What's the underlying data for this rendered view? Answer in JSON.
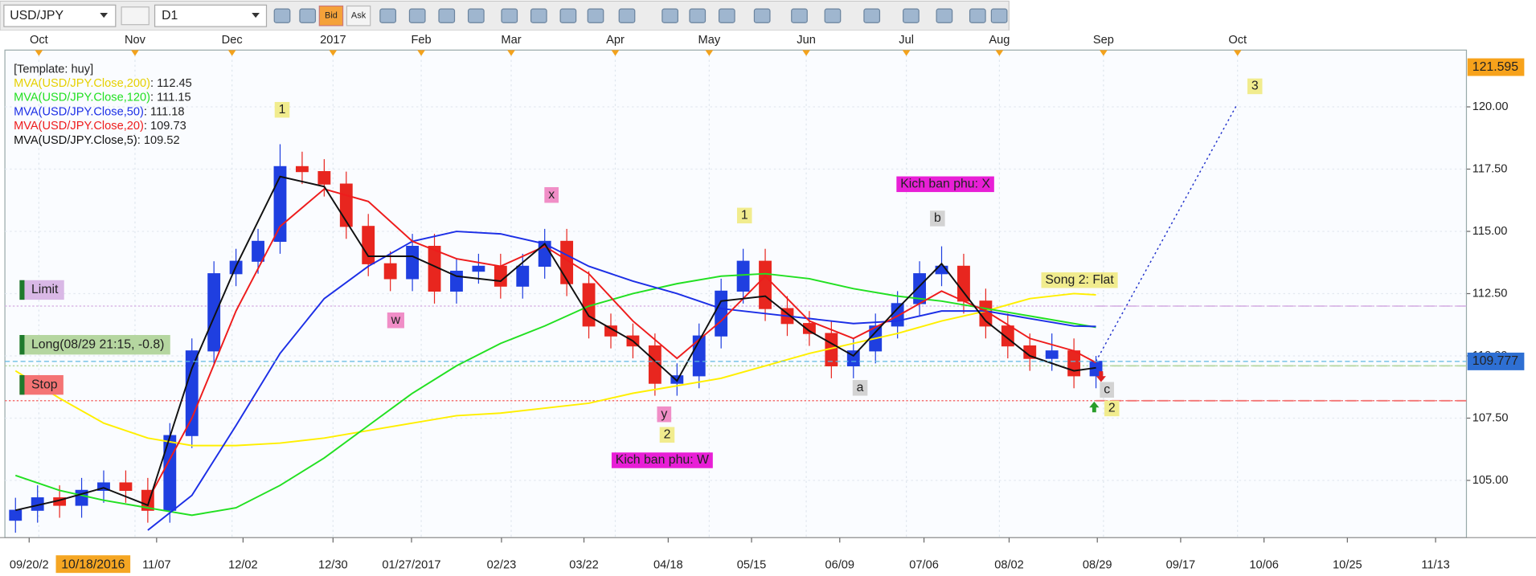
{
  "toolbar": {
    "symbol": "USD/JPY",
    "timeframe": "D1",
    "bid": "Bid",
    "ask": "Ask"
  },
  "chart_data": {
    "type": "candlestick",
    "template": "[Template: huy]",
    "legend_separator": ": ",
    "x": [
      -12,
      -7,
      -2,
      3,
      8,
      13,
      18,
      23,
      28,
      33,
      38,
      43,
      48,
      53,
      58,
      63,
      68,
      73,
      78,
      83,
      88,
      93,
      98,
      103,
      108,
      113,
      118,
      123,
      128,
      133,
      138,
      143,
      148,
      153,
      158,
      163,
      168,
      173,
      178,
      183,
      188,
      193,
      198,
      203,
      208,
      213,
      218,
      223,
      228,
      233
    ],
    "open": [
      103.4,
      103.8,
      104.3,
      104.0,
      104.6,
      104.9,
      104.6,
      103.8,
      106.8,
      110.2,
      113.3,
      113.8,
      114.6,
      117.6,
      117.4,
      116.9,
      115.2,
      113.7,
      113.1,
      114.4,
      112.6,
      113.4,
      113.6,
      112.8,
      113.6,
      114.6,
      112.9,
      111.2,
      110.8,
      110.4,
      108.9,
      109.2,
      110.8,
      112.6,
      113.8,
      111.9,
      111.3,
      110.9,
      109.6,
      110.2,
      111.2,
      112.1,
      113.3,
      113.6,
      112.2,
      111.2,
      110.4,
      109.9,
      110.2,
      109.2
    ],
    "high": [
      104.3,
      104.8,
      104.8,
      105.1,
      105.4,
      105.4,
      105.1,
      107.3,
      110.7,
      113.8,
      114.3,
      115.1,
      118.5,
      118.2,
      117.9,
      117.4,
      115.7,
      114.2,
      114.9,
      114.9,
      113.9,
      114.1,
      114.1,
      114.1,
      115.1,
      115.1,
      113.4,
      111.7,
      111.3,
      110.9,
      109.7,
      111.3,
      113.1,
      114.3,
      114.3,
      112.4,
      111.8,
      111.4,
      110.7,
      111.7,
      112.6,
      113.8,
      114.4,
      114.1,
      112.7,
      111.7,
      110.9,
      110.9,
      110.7,
      110.0
    ],
    "low": [
      102.9,
      103.3,
      103.5,
      103.5,
      104.1,
      104.1,
      103.3,
      103.3,
      106.3,
      109.7,
      112.8,
      113.3,
      114.1,
      116.9,
      116.4,
      114.7,
      113.2,
      112.6,
      112.6,
      112.1,
      112.1,
      112.9,
      112.3,
      112.3,
      113.1,
      112.4,
      110.7,
      110.3,
      109.9,
      108.4,
      108.4,
      108.7,
      110.3,
      112.1,
      111.4,
      110.8,
      110.4,
      109.1,
      109.1,
      109.7,
      110.7,
      111.6,
      112.8,
      111.7,
      110.7,
      109.9,
      109.4,
      109.4,
      108.7,
      108.7
    ],
    "close": [
      103.8,
      104.3,
      104.0,
      104.6,
      104.9,
      104.6,
      103.8,
      106.8,
      110.2,
      113.3,
      113.8,
      114.6,
      117.6,
      117.4,
      116.9,
      115.2,
      113.7,
      113.1,
      114.4,
      112.6,
      113.4,
      113.6,
      112.8,
      113.6,
      114.6,
      112.9,
      111.2,
      110.8,
      110.4,
      108.9,
      109.2,
      110.8,
      112.6,
      113.8,
      111.9,
      111.3,
      110.9,
      109.6,
      110.2,
      111.2,
      112.1,
      113.3,
      113.6,
      112.2,
      111.2,
      110.4,
      109.9,
      110.2,
      109.2,
      109.78
    ],
    "up_color": "#1f3fe0",
    "down_color": "#e8261f",
    "series": [
      {
        "name": "MVA(USD/JPY.Close,200)",
        "color": "#ffef00",
        "x": [
          -12,
          -2,
          8,
          18,
          28,
          38,
          48,
          58,
          68,
          78,
          88,
          98,
          108,
          118,
          128,
          138,
          148,
          158,
          168,
          178,
          188,
          198,
          208,
          218,
          228,
          233
        ],
        "values": [
          109.4,
          108.3,
          107.3,
          106.7,
          106.4,
          106.4,
          106.5,
          106.7,
          107.0,
          107.3,
          107.6,
          107.7,
          107.9,
          108.1,
          108.5,
          108.8,
          109.1,
          109.6,
          110.1,
          110.5,
          110.9,
          111.4,
          111.8,
          112.3,
          112.5,
          112.45
        ]
      },
      {
        "name": "MVA(USD/JPY.Close,120)",
        "color": "#22e022",
        "x": [
          -12,
          -2,
          8,
          18,
          28,
          38,
          48,
          58,
          68,
          78,
          88,
          98,
          108,
          118,
          128,
          138,
          148,
          158,
          168,
          178,
          188,
          198,
          208,
          218,
          228,
          233
        ],
        "values": [
          105.2,
          104.6,
          104.2,
          103.9,
          103.6,
          103.9,
          104.8,
          105.9,
          107.2,
          108.5,
          109.6,
          110.5,
          111.2,
          112.0,
          112.5,
          112.9,
          113.2,
          113.3,
          113.1,
          112.7,
          112.4,
          112.2,
          111.9,
          111.6,
          111.3,
          111.15
        ]
      },
      {
        "name": "MVA(USD/JPY.Close,50)",
        "color": "#1c2fe6",
        "x": [
          -12,
          -2,
          8,
          18,
          28,
          38,
          48,
          58,
          68,
          78,
          88,
          98,
          108,
          118,
          128,
          138,
          148,
          158,
          168,
          178,
          188,
          198,
          208,
          218,
          228,
          233
        ],
        "values": [
          null,
          null,
          null,
          103.0,
          104.4,
          107.2,
          110.1,
          112.3,
          113.6,
          114.6,
          115.0,
          114.9,
          114.5,
          113.6,
          113.0,
          112.5,
          111.9,
          111.7,
          111.5,
          111.3,
          111.4,
          111.8,
          111.8,
          111.5,
          111.2,
          111.18
        ]
      },
      {
        "name": "MVA(USD/JPY.Close,20)",
        "color": "#ee1c1c",
        "x": [
          -12,
          -2,
          8,
          18,
          28,
          38,
          48,
          58,
          68,
          78,
          88,
          98,
          108,
          118,
          128,
          138,
          148,
          158,
          168,
          178,
          188,
          198,
          208,
          218,
          228,
          233
        ],
        "values": [
          null,
          null,
          null,
          104.2,
          107.5,
          111.8,
          115.2,
          116.7,
          116.2,
          114.6,
          113.9,
          113.6,
          114.4,
          113.3,
          111.4,
          109.9,
          111.4,
          113.2,
          111.4,
          110.7,
          111.6,
          112.6,
          111.8,
          110.7,
          110.2,
          109.73
        ]
      },
      {
        "name": "MVA(USD/JPY.Close,5)",
        "color": "#111111",
        "x": [
          -12,
          -2,
          8,
          18,
          28,
          38,
          48,
          58,
          68,
          78,
          88,
          98,
          108,
          118,
          128,
          138,
          148,
          158,
          168,
          178,
          188,
          198,
          208,
          218,
          228,
          233
        ],
        "values": [
          103.8,
          104.2,
          104.7,
          104.0,
          109.5,
          113.6,
          117.2,
          116.8,
          114.0,
          114.0,
          113.2,
          113.0,
          114.5,
          111.6,
          110.6,
          109.0,
          112.2,
          112.4,
          111.0,
          110.0,
          111.9,
          113.7,
          111.4,
          110.0,
          109.4,
          109.52
        ]
      }
    ],
    "xlim": [
      -14.4,
      317
    ],
    "ylim": [
      102.7,
      122.28
    ],
    "yticks": [
      {
        "value": 105,
        "label": "105.00"
      },
      {
        "value": 107.5,
        "label": "107.50"
      },
      {
        "value": 110,
        "label": "110.00"
      },
      {
        "value": 112.5,
        "label": "112.50"
      },
      {
        "value": 115,
        "label": "115.00"
      },
      {
        "value": 117.5,
        "label": "117.50"
      },
      {
        "value": 120,
        "label": "120.00"
      }
    ],
    "xticks": [
      {
        "value": -8.9,
        "label": "09/20/2"
      },
      {
        "value": 20,
        "label": "11/07"
      },
      {
        "value": 39.6,
        "label": "12/02"
      },
      {
        "value": 60,
        "label": "12/30"
      },
      {
        "value": 77.8,
        "label": "01/27/2017"
      },
      {
        "value": 98.2,
        "label": "02/23"
      },
      {
        "value": 116.9,
        "label": "03/22"
      },
      {
        "value": 136,
        "label": "04/18"
      },
      {
        "value": 154.9,
        "label": "05/15"
      },
      {
        "value": 174.9,
        "label": "06/09"
      },
      {
        "value": 194,
        "label": "07/06"
      },
      {
        "value": 213.3,
        "label": "08/02"
      },
      {
        "value": 233.3,
        "label": "08/29"
      },
      {
        "value": 252.2,
        "label": "09/17"
      },
      {
        "value": 271.1,
        "label": "10/06"
      },
      {
        "value": 290,
        "label": "10/25"
      },
      {
        "value": 310,
        "label": "11/13"
      }
    ],
    "month_ticks": [
      {
        "value": -6.7,
        "label": "Oct"
      },
      {
        "value": 15.1,
        "label": "Nov"
      },
      {
        "value": 37.1,
        "label": "Dec"
      },
      {
        "value": 60,
        "label": "2017"
      },
      {
        "value": 80,
        "label": "Feb"
      },
      {
        "value": 100.4,
        "label": "Mar"
      },
      {
        "value": 124,
        "label": "Apr"
      },
      {
        "value": 145.3,
        "label": "May"
      },
      {
        "value": 167.3,
        "label": "Jun"
      },
      {
        "value": 190,
        "label": "Jul"
      },
      {
        "value": 211.1,
        "label": "Aug"
      },
      {
        "value": 234.7,
        "label": "Sep"
      },
      {
        "value": 265.1,
        "label": "Oct"
      }
    ],
    "cursor_date": {
      "value": 5.6,
      "label": "10/18/2016"
    },
    "price_markers": [
      {
        "value": 121.595,
        "color": "#f7a21b"
      },
      {
        "value": 109.777,
        "color": "#2e6fd3"
      }
    ],
    "orders": [
      {
        "label": "Limit",
        "value": 112.0,
        "color": "#d9b8e6"
      },
      {
        "label": "Long(08/29 21:15, -0.8)",
        "value": 109.6,
        "color": "#b5d6a0"
      },
      {
        "label": "Stop",
        "value": 108.2,
        "color": "#f47474"
      }
    ],
    "projection": {
      "x": [
        233,
        265
      ],
      "values": [
        109.78,
        120.1
      ]
    },
    "annotations": [
      {
        "text": "1",
        "style": "wave"
      },
      {
        "text": "x",
        "style": "pink"
      },
      {
        "text": "w",
        "style": "pink"
      },
      {
        "text": "y",
        "style": "pink"
      },
      {
        "text": "2",
        "style": "wave"
      },
      {
        "text": "Kich ban phu: W",
        "style": "magenta"
      },
      {
        "text": "1",
        "style": "wave"
      },
      {
        "text": "Kich ban phu: X",
        "style": "magenta"
      },
      {
        "text": "b",
        "style": "gray"
      },
      {
        "text": "a",
        "style": "gray"
      },
      {
        "text": "Song 2: Flat",
        "style": "wave"
      },
      {
        "text": "c",
        "style": "gray"
      },
      {
        "text": "2",
        "style": "wave"
      },
      {
        "text": "3",
        "style": "wave"
      }
    ]
  }
}
